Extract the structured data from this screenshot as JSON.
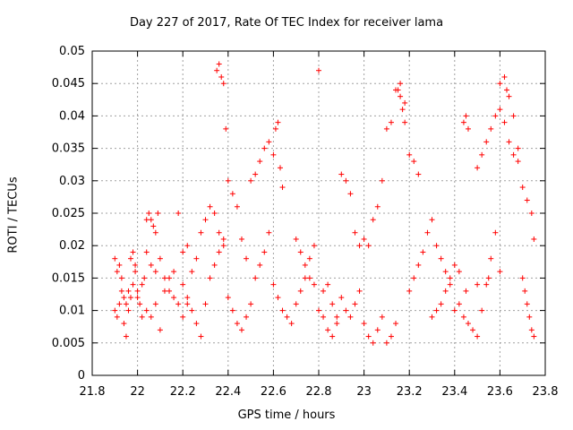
{
  "chart_data": {
    "type": "scatter",
    "title": "Day 227 of 2017, Rate Of TEC Index for receiver lama",
    "xlabel": "GPS time / hours",
    "ylabel": "ROTI / TECUs",
    "xlim": [
      21.8,
      23.8
    ],
    "ylim": [
      0,
      0.05
    ],
    "xticks": [
      "21.8",
      "22",
      "22.2",
      "22.4",
      "22.6",
      "22.8",
      "23",
      "23.2",
      "23.4",
      "23.6",
      "23.8"
    ],
    "yticks": [
      "0",
      "0.005",
      "0.01",
      "0.015",
      "0.02",
      "0.025",
      "0.03",
      "0.035",
      "0.04",
      "0.045",
      "0.05"
    ],
    "grid": true,
    "marker": "+",
    "color": "#ff0000",
    "series": [
      {
        "name": "ROTI",
        "x": [
          21.9,
          21.91,
          21.92,
          21.93,
          21.94,
          21.95,
          21.96,
          21.97,
          21.98,
          21.99,
          21.9,
          21.91,
          21.92,
          21.93,
          21.94,
          21.95,
          21.96,
          21.97,
          21.98,
          21.99,
          22.0,
          22.01,
          22.02,
          22.03,
          22.04,
          22.05,
          22.06,
          22.07,
          22.08,
          22.09,
          22.0,
          22.02,
          22.04,
          22.06,
          22.08,
          22.1,
          22.12,
          22.14,
          22.16,
          22.18,
          22.04,
          22.06,
          22.08,
          22.1,
          22.12,
          22.14,
          22.16,
          22.18,
          22.2,
          22.22,
          22.2,
          22.22,
          22.24,
          22.26,
          22.28,
          22.3,
          22.32,
          22.34,
          22.36,
          22.38,
          22.2,
          22.22,
          22.24,
          22.26,
          22.28,
          22.3,
          22.32,
          22.34,
          22.36,
          22.38,
          22.35,
          22.36,
          22.37,
          22.38,
          22.39,
          22.4,
          22.42,
          22.44,
          22.46,
          22.48,
          22.4,
          22.42,
          22.44,
          22.46,
          22.48,
          22.5,
          22.52,
          22.54,
          22.56,
          22.58,
          22.5,
          22.52,
          22.54,
          22.56,
          22.58,
          22.6,
          22.61,
          22.62,
          22.63,
          22.64,
          22.6,
          22.62,
          22.64,
          22.66,
          22.68,
          22.7,
          22.72,
          22.74,
          22.76,
          22.78,
          22.7,
          22.72,
          22.74,
          22.76,
          22.78,
          22.8,
          22.82,
          22.84,
          22.86,
          22.88,
          22.8,
          22.82,
          22.84,
          22.86,
          22.88,
          22.9,
          22.92,
          22.94,
          22.96,
          22.98,
          22.9,
          22.92,
          22.94,
          22.96,
          22.98,
          23.0,
          23.02,
          23.04,
          23.06,
          23.08,
          23.0,
          23.02,
          23.04,
          23.06,
          23.08,
          23.1,
          23.12,
          23.14,
          23.16,
          23.18,
          23.1,
          23.12,
          23.14,
          23.15,
          23.16,
          23.17,
          23.18,
          23.2,
          23.22,
          23.24,
          23.2,
          23.22,
          23.24,
          23.26,
          23.28,
          23.3,
          23.32,
          23.34,
          23.36,
          23.38,
          23.3,
          23.32,
          23.34,
          23.36,
          23.38,
          23.4,
          23.42,
          23.44,
          23.45,
          23.46,
          23.4,
          23.42,
          23.44,
          23.46,
          23.48,
          23.5,
          23.52,
          23.54,
          23.56,
          23.58,
          23.5,
          23.52,
          23.54,
          23.56,
          23.58,
          23.6,
          23.62,
          23.64,
          23.66,
          23.68,
          23.6,
          23.62,
          23.63,
          23.64,
          23.66,
          23.68,
          23.7,
          23.72,
          23.74,
          23.75,
          23.7,
          23.71,
          23.72,
          23.73,
          23.74,
          23.75,
          23.6,
          23.55,
          23.5,
          23.45
        ],
        "y": [
          0.018,
          0.016,
          0.017,
          0.015,
          0.012,
          0.011,
          0.013,
          0.018,
          0.019,
          0.017,
          0.01,
          0.009,
          0.011,
          0.013,
          0.008,
          0.006,
          0.01,
          0.012,
          0.014,
          0.016,
          0.013,
          0.011,
          0.009,
          0.015,
          0.024,
          0.025,
          0.024,
          0.023,
          0.022,
          0.025,
          0.012,
          0.014,
          0.01,
          0.009,
          0.011,
          0.007,
          0.013,
          0.015,
          0.016,
          0.025,
          0.019,
          0.017,
          0.016,
          0.018,
          0.015,
          0.013,
          0.012,
          0.011,
          0.019,
          0.02,
          0.014,
          0.012,
          0.01,
          0.008,
          0.006,
          0.011,
          0.015,
          0.017,
          0.019,
          0.021,
          0.009,
          0.011,
          0.016,
          0.018,
          0.022,
          0.024,
          0.026,
          0.025,
          0.022,
          0.02,
          0.047,
          0.048,
          0.046,
          0.045,
          0.038,
          0.03,
          0.028,
          0.026,
          0.021,
          0.018,
          0.012,
          0.01,
          0.008,
          0.007,
          0.009,
          0.011,
          0.015,
          0.017,
          0.019,
          0.022,
          0.03,
          0.031,
          0.033,
          0.035,
          0.036,
          0.034,
          0.038,
          0.039,
          0.032,
          0.029,
          0.014,
          0.012,
          0.01,
          0.009,
          0.008,
          0.011,
          0.013,
          0.015,
          0.018,
          0.02,
          0.021,
          0.019,
          0.017,
          0.015,
          0.014,
          0.01,
          0.009,
          0.007,
          0.006,
          0.008,
          0.047,
          0.013,
          0.014,
          0.011,
          0.009,
          0.031,
          0.03,
          0.028,
          0.022,
          0.02,
          0.012,
          0.01,
          0.009,
          0.011,
          0.013,
          0.008,
          0.006,
          0.005,
          0.007,
          0.009,
          0.021,
          0.02,
          0.024,
          0.026,
          0.03,
          0.038,
          0.039,
          0.044,
          0.045,
          0.042,
          0.005,
          0.006,
          0.008,
          0.044,
          0.043,
          0.041,
          0.039,
          0.034,
          0.033,
          0.031,
          0.013,
          0.015,
          0.017,
          0.019,
          0.022,
          0.024,
          0.02,
          0.018,
          0.016,
          0.014,
          0.009,
          0.01,
          0.011,
          0.013,
          0.015,
          0.017,
          0.016,
          0.039,
          0.04,
          0.038,
          0.01,
          0.011,
          0.009,
          0.008,
          0.007,
          0.006,
          0.01,
          0.014,
          0.018,
          0.022,
          0.032,
          0.034,
          0.036,
          0.038,
          0.04,
          0.041,
          0.039,
          0.036,
          0.034,
          0.033,
          0.045,
          0.046,
          0.044,
          0.043,
          0.04,
          0.035,
          0.029,
          0.027,
          0.025,
          0.021,
          0.015,
          0.013,
          0.011,
          0.009,
          0.007,
          0.006,
          0.016,
          0.015,
          0.014,
          0.013
        ]
      }
    ]
  }
}
